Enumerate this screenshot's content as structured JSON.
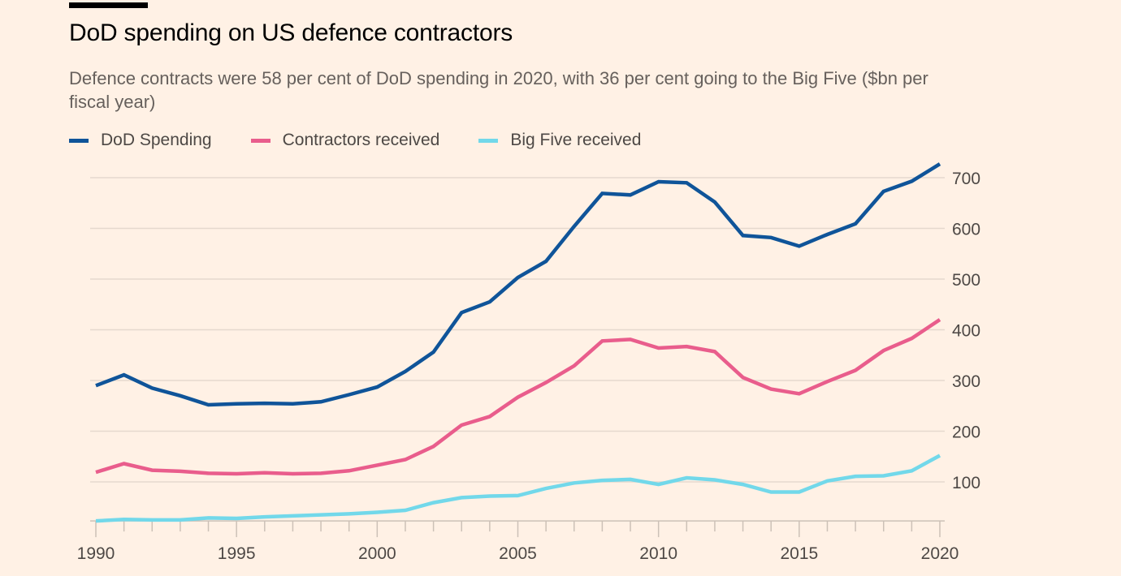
{
  "header": {
    "title": "DoD spending on US defence contractors",
    "subtitle": "Defence contracts were 58 per cent of DoD spending in 2020, with 36 per cent going to the Big Five ($bn per fiscal year)"
  },
  "chart_data": {
    "type": "line",
    "title": "DoD spending on US defence contractors",
    "subtitle": "Defence contracts were 58 per cent of DoD spending in 2020, with 36 per cent going to the Big Five ($bn per fiscal year)",
    "xlabel": "",
    "ylabel": "$bn per fiscal year",
    "x": [
      1990,
      1991,
      1992,
      1993,
      1994,
      1995,
      1996,
      1997,
      1998,
      1999,
      2000,
      2001,
      2002,
      2003,
      2004,
      2005,
      2006,
      2007,
      2008,
      2009,
      2010,
      2011,
      2012,
      2013,
      2014,
      2015,
      2016,
      2017,
      2018,
      2019,
      2020
    ],
    "xlim": [
      1990,
      2020
    ],
    "ylim": [
      23,
      730
    ],
    "x_ticks_major": [
      "1990",
      "1995",
      "2000",
      "2005",
      "2010",
      "2015",
      "2020"
    ],
    "y_ticks": [
      "100",
      "200",
      "300",
      "400",
      "500",
      "600",
      "700"
    ],
    "y_axis_side": "right",
    "grid": true,
    "legend_position": "top-left",
    "series": [
      {
        "name": "DoD Spending",
        "color": "#0f5499",
        "values": [
          290,
          311,
          285,
          270,
          252,
          254,
          255,
          254,
          258,
          272,
          287,
          318,
          356,
          434,
          455,
          503,
          535,
          604,
          669,
          666,
          692,
          690,
          652,
          586,
          582,
          565,
          588,
          609,
          673,
          693,
          727
        ]
      },
      {
        "name": "Contractors received",
        "color": "#e95d8c",
        "values": [
          119,
          136,
          123,
          121,
          117,
          116,
          118,
          116,
          117,
          122,
          133,
          144,
          170,
          212,
          229,
          267,
          296,
          329,
          378,
          381,
          364,
          367,
          357,
          306,
          283,
          274,
          298,
          320,
          359,
          383,
          420
        ]
      },
      {
        "name": "Big Five received",
        "color": "#72d8ea",
        "values": [
          23,
          26,
          25,
          25,
          29,
          28,
          31,
          33,
          35,
          37,
          40,
          44,
          59,
          69,
          72,
          73,
          87,
          98,
          103,
          105,
          95,
          108,
          104,
          95,
          80,
          80,
          102,
          111,
          112,
          122,
          152
        ]
      }
    ]
  },
  "colors": {
    "background": "#fff1e5",
    "gridline": "#e6d9ce",
    "axis": "#ccc1b7"
  }
}
